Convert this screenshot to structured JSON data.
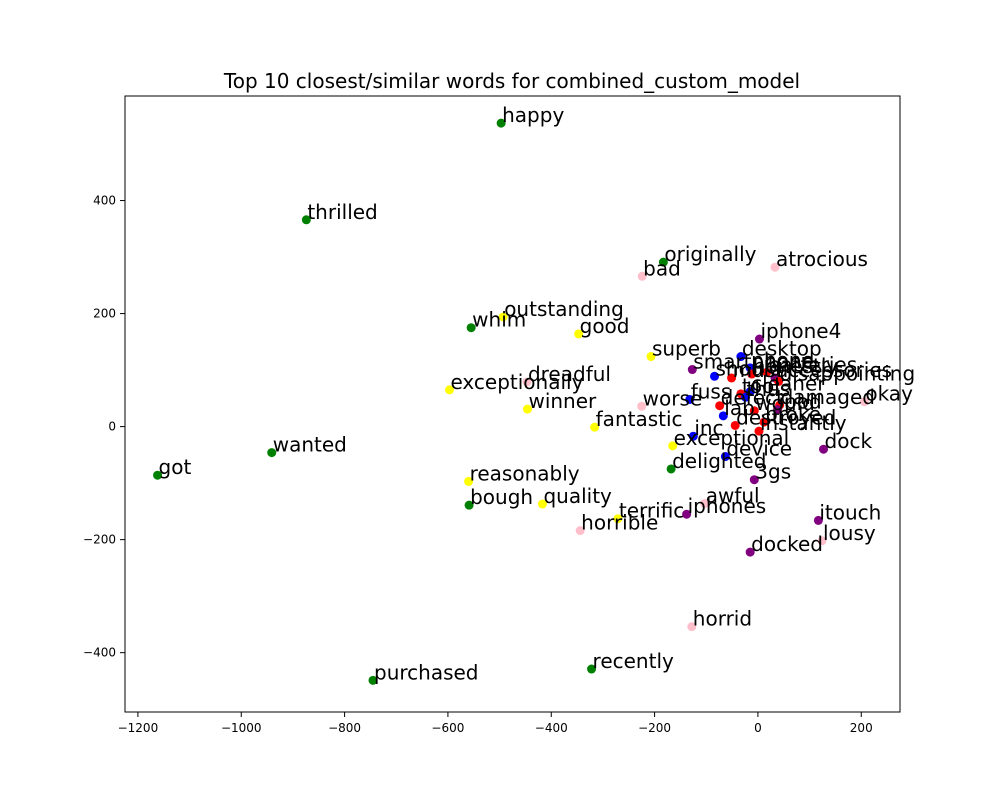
{
  "chart_data": {
    "type": "scatter",
    "title": "Top 10 closest/similar words for combined_custom_model",
    "xlabel": "",
    "ylabel": "",
    "xlim": [
      -1225,
      275
    ],
    "ylim": [
      -505,
      585
    ],
    "xticks": [
      -1200,
      -1000,
      -800,
      -600,
      -400,
      -200,
      0,
      200
    ],
    "yticks": [
      -400,
      -200,
      0,
      200,
      400
    ],
    "grid": false,
    "colors": {
      "green": "#008000",
      "yellow": "#ffff00",
      "pink": "#ffc0cb",
      "purple": "#800080",
      "blue": "#0000ff",
      "red": "#ff0000"
    },
    "points": [
      {
        "label": "happy",
        "x": -497,
        "y": 537,
        "color": "green"
      },
      {
        "label": "thrilled",
        "x": -874,
        "y": 366,
        "color": "green"
      },
      {
        "label": "originally",
        "x": -183,
        "y": 291,
        "color": "green"
      },
      {
        "label": "atrocious",
        "x": 33,
        "y": 282,
        "color": "pink"
      },
      {
        "label": "bad",
        "x": -224,
        "y": 266,
        "color": "pink"
      },
      {
        "label": "outstanding",
        "x": -493,
        "y": 194,
        "color": "yellow"
      },
      {
        "label": "whim",
        "x": -555,
        "y": 175,
        "color": "green"
      },
      {
        "label": "good",
        "x": -347,
        "y": 164,
        "color": "yellow"
      },
      {
        "label": "iphone4",
        "x": 3,
        "y": 155,
        "color": "purple"
      },
      {
        "label": "superb",
        "x": -207,
        "y": 124,
        "color": "yellow"
      },
      {
        "label": "desktop",
        "x": -33,
        "y": 124,
        "color": "blue"
      },
      {
        "label": "smartphone",
        "x": -127,
        "y": 101,
        "color": "purple"
      },
      {
        "label": "phone",
        "x": -15,
        "y": 104,
        "color": "blue"
      },
      {
        "label": "should",
        "x": -84,
        "y": 89,
        "color": "blue"
      },
      {
        "label": "must",
        "x": -51,
        "y": 86,
        "color": "red"
      },
      {
        "label": "honestly",
        "x": -12,
        "y": 93,
        "color": "red"
      },
      {
        "label": "batteries",
        "x": 17,
        "y": 96,
        "color": "red"
      },
      {
        "label": "accessories",
        "x": 33,
        "y": 86,
        "color": "purple"
      },
      {
        "label": "disappointing",
        "x": 40,
        "y": 80,
        "color": "red"
      },
      {
        "label": "exceptionally",
        "x": -597,
        "y": 65,
        "color": "yellow"
      },
      {
        "label": "dreadful",
        "x": -447,
        "y": 79,
        "color": "pink"
      },
      {
        "label": "tool",
        "x": -33,
        "y": 58,
        "color": "red"
      },
      {
        "label": "cleaner",
        "x": -15,
        "y": 62,
        "color": "blue"
      },
      {
        "label": "fuss",
        "x": -132,
        "y": 48,
        "color": "blue"
      },
      {
        "label": "thus",
        "x": -24,
        "y": 52,
        "color": "blue"
      },
      {
        "label": "okay",
        "x": 206,
        "y": 44,
        "color": "pink"
      },
      {
        "label": "damaged",
        "x": 42,
        "y": 38,
        "color": "red"
      },
      {
        "label": "winner",
        "x": -446,
        "y": 31,
        "color": "yellow"
      },
      {
        "label": "worse",
        "x": -225,
        "y": 36,
        "color": "pink"
      },
      {
        "label": "defect",
        "x": -74,
        "y": 37,
        "color": "red"
      },
      {
        "label": "would",
        "x": -7,
        "y": 28,
        "color": "red"
      },
      {
        "label": "ipod",
        "x": 38,
        "y": 30,
        "color": "purple"
      },
      {
        "label": "lab",
        "x": -67,
        "y": 19,
        "color": "blue"
      },
      {
        "label": "destroyed",
        "x": -44,
        "y": 2,
        "color": "red"
      },
      {
        "label": "broke",
        "x": 12,
        "y": 8,
        "color": "red"
      },
      {
        "label": "fantastic",
        "x": -316,
        "y": -1,
        "color": "yellow"
      },
      {
        "label": "instantly",
        "x": 2,
        "y": -8,
        "color": "red"
      },
      {
        "label": "inc",
        "x": -125,
        "y": -17,
        "color": "blue"
      },
      {
        "label": "dock",
        "x": 127,
        "y": -40,
        "color": "purple"
      },
      {
        "label": "exceptional",
        "x": -165,
        "y": -34,
        "color": "yellow"
      },
      {
        "label": "device",
        "x": -63,
        "y": -53,
        "color": "blue"
      },
      {
        "label": "wanted",
        "x": -941,
        "y": -46,
        "color": "green"
      },
      {
        "label": "delighted",
        "x": -168,
        "y": -75,
        "color": "green"
      },
      {
        "label": "got",
        "x": -1162,
        "y": -86,
        "color": "green"
      },
      {
        "label": "3gs",
        "x": -7,
        "y": -94,
        "color": "purple"
      },
      {
        "label": "reasonably",
        "x": -560,
        "y": -97,
        "color": "yellow"
      },
      {
        "label": "bough",
        "x": -559,
        "y": -139,
        "color": "green"
      },
      {
        "label": "quality",
        "x": -417,
        "y": -137,
        "color": "yellow"
      },
      {
        "label": "awful",
        "x": -103,
        "y": -136,
        "color": "pink"
      },
      {
        "label": "iphones",
        "x": -138,
        "y": -155,
        "color": "purple"
      },
      {
        "label": "terrific",
        "x": -271,
        "y": -163,
        "color": "yellow"
      },
      {
        "label": "itouch",
        "x": 117,
        "y": -166,
        "color": "purple"
      },
      {
        "label": "horrible",
        "x": -344,
        "y": -184,
        "color": "pink"
      },
      {
        "label": "lousy",
        "x": 124,
        "y": -202,
        "color": "pink"
      },
      {
        "label": "docked",
        "x": -15,
        "y": -222,
        "color": "purple"
      },
      {
        "label": "horrid",
        "x": -128,
        "y": -354,
        "color": "pink"
      },
      {
        "label": "recently",
        "x": -322,
        "y": -429,
        "color": "green"
      },
      {
        "label": "purchased",
        "x": -745,
        "y": -449,
        "color": "green"
      }
    ]
  }
}
